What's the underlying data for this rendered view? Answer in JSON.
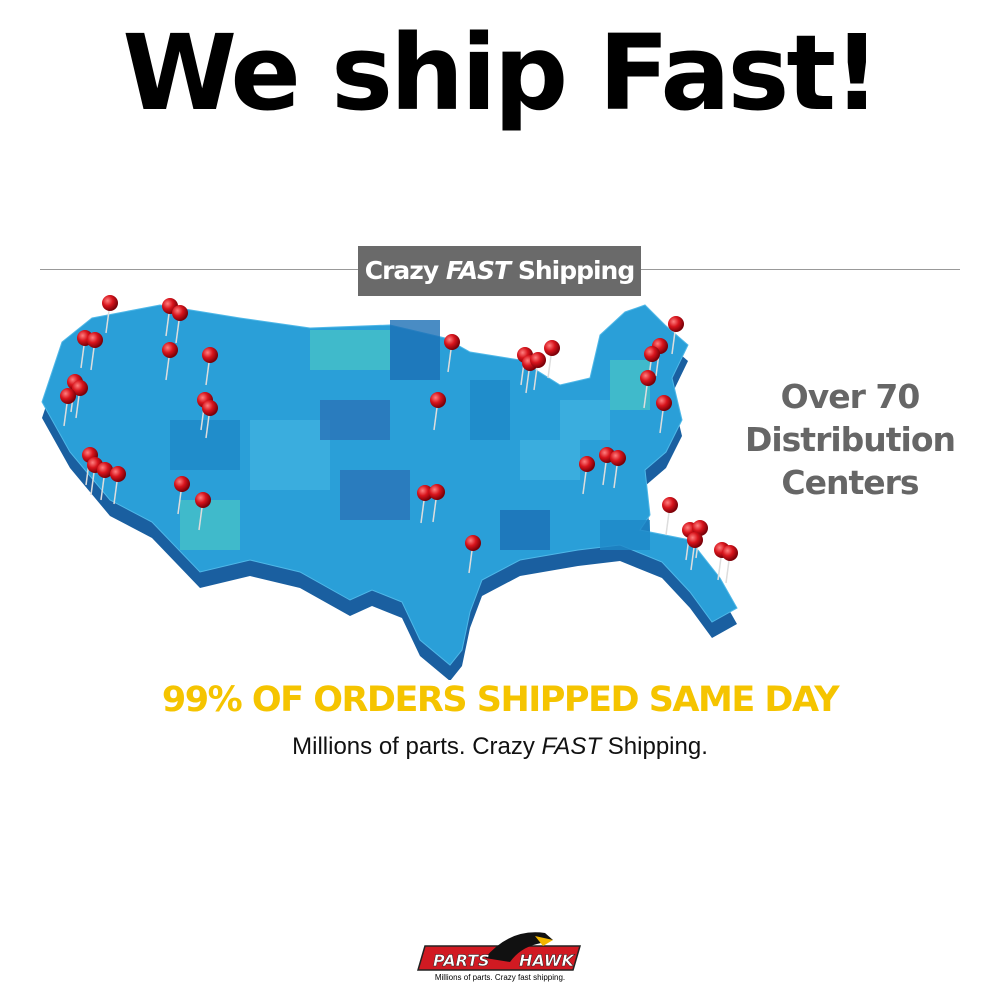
{
  "header": {
    "title": "We ship Fast!"
  },
  "banner": {
    "part1": "Crazy",
    "part2": "FAST",
    "part3": "Shipping"
  },
  "side_text": {
    "line1": "Over 70",
    "line2": "Distribution",
    "line3": "Centers"
  },
  "headline": "99% OF ORDERS SHIPPED SAME DAY",
  "subline": {
    "part1": "Millions of parts. Crazy",
    "part2": "FAST",
    "part3": "Shipping."
  },
  "logo": {
    "word1": "PARTS",
    "word2": "HAWK",
    "tagline": "Millions of parts. Crazy fast shipping."
  },
  "colors": {
    "map_blue": "#2a9fd8",
    "map_dark": "#1a5fa0",
    "pin_red": "#d8141c",
    "headline_yellow": "#f5c400",
    "banner_gray": "#6a6a6a"
  }
}
